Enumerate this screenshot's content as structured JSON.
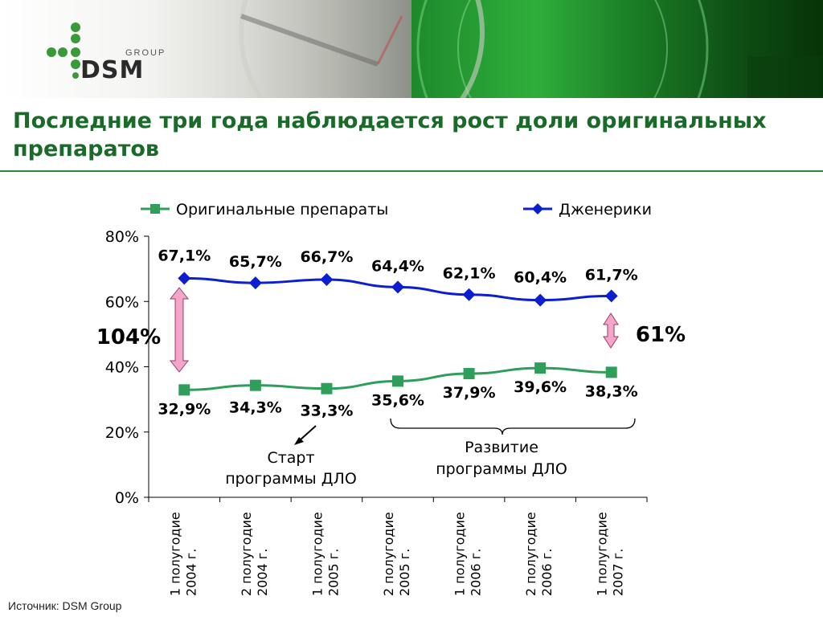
{
  "brand": {
    "name": "DSM",
    "group": "GROUP"
  },
  "title": "Последние три года наблюдается рост доли оригинальных препаратов",
  "source": "Источник: DSM Group",
  "colors": {
    "original": "#2e9e5b",
    "generic": "#0b1fd0",
    "arrow": "#f4a6c8",
    "title": "#1a6b2a"
  },
  "chart_data": {
    "type": "line",
    "categories": [
      "1 полугодие 2004 г.",
      "2 полугодие 2004 г.",
      "1 полугодие 2005 г.",
      "2 полугодие 2005 г.",
      "1 полугодие 2006 г.",
      "2 полугодие 2006 г.",
      "1 полугодие 2007 г."
    ],
    "series": [
      {
        "name": "Оригинальные препараты",
        "marker": "square",
        "color": "#2e9e5b",
        "values": [
          32.9,
          34.3,
          33.3,
          35.6,
          37.9,
          39.6,
          38.3
        ],
        "labels": [
          "32,9%",
          "34,3%",
          "33,3%",
          "35,6%",
          "37,9%",
          "39,6%",
          "38,3%"
        ]
      },
      {
        "name": "Дженерики",
        "marker": "diamond",
        "color": "#0b1fd0",
        "values": [
          67.1,
          65.7,
          66.7,
          64.4,
          62.1,
          60.4,
          61.7
        ],
        "labels": [
          "67,1%",
          "65,7%",
          "66,7%",
          "64,4%",
          "62,1%",
          "60,4%",
          "61,7%"
        ]
      }
    ],
    "ylim": [
      0,
      80
    ],
    "yticks": [
      0,
      20,
      40,
      60,
      80
    ],
    "ytick_labels": [
      "0%",
      "20%",
      "40%",
      "60%",
      "80%"
    ],
    "legend": "top",
    "annotations": {
      "gap_start": "104%",
      "gap_end": "61%",
      "start_program": [
        "Старт",
        "программы ДЛО"
      ],
      "development": [
        "Развитие",
        "программы ДЛО"
      ]
    }
  }
}
